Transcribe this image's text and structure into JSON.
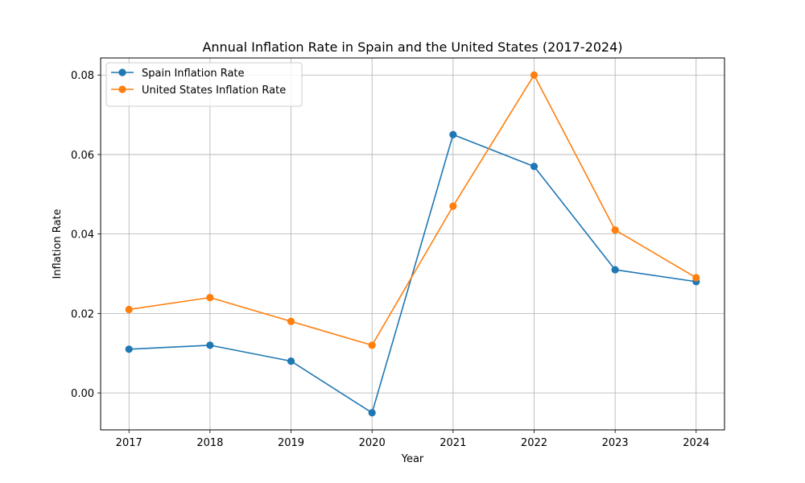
{
  "chart_data": {
    "type": "line",
    "title": "Annual Inflation Rate in Spain and the United States (2017-2024)",
    "xlabel": "Year",
    "ylabel": "Inflation Rate",
    "categories": [
      "2017",
      "2018",
      "2019",
      "2020",
      "2021",
      "2022",
      "2023",
      "2024"
    ],
    "x": [
      2017,
      2018,
      2019,
      2020,
      2021,
      2022,
      2023,
      2024
    ],
    "xlim": [
      2016.65,
      2024.35
    ],
    "ylim": [
      -0.0093,
      0.0843
    ],
    "yticks": [
      0.0,
      0.02,
      0.04,
      0.06,
      0.08
    ],
    "ytick_labels": [
      "0.00",
      "0.02",
      "0.04",
      "0.06",
      "0.08"
    ],
    "grid": true,
    "legend_position": "top-left",
    "series": [
      {
        "name": "Spain Inflation Rate",
        "color": "#1f77b4",
        "values": [
          0.011,
          0.012,
          0.008,
          -0.005,
          0.065,
          0.057,
          0.031,
          0.028
        ]
      },
      {
        "name": "United States Inflation Rate",
        "color": "#ff7f0e",
        "values": [
          0.021,
          0.024,
          0.018,
          0.012,
          0.047,
          0.08,
          0.041,
          0.029
        ]
      }
    ]
  }
}
